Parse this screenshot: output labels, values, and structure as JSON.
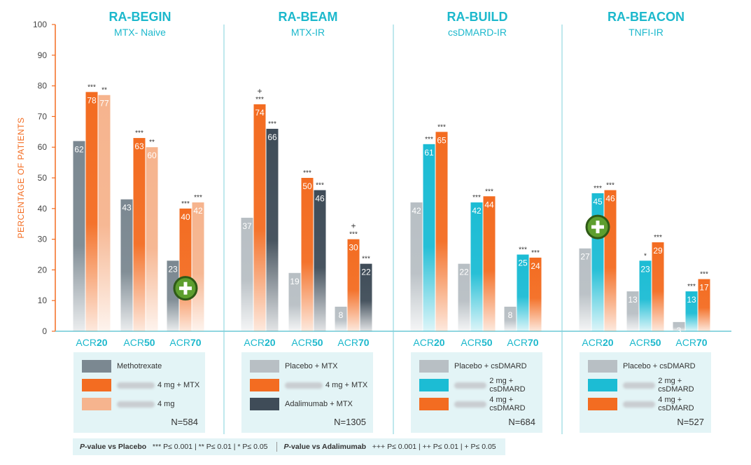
{
  "chart_data": {
    "type": "bar",
    "ylabel": "PERCENTAGE OF PATIENTS",
    "ylim": [
      0,
      100
    ],
    "yticks": [
      0,
      10,
      20,
      30,
      40,
      50,
      60,
      70,
      80,
      90,
      100
    ],
    "panels": [
      {
        "title": "RA-BEGIN",
        "subtitle": "MTX- Naive",
        "groups": [
          {
            "prefix": "ACR",
            "number": "20",
            "values": [
              62,
              78,
              77
            ],
            "marks": [
              "",
              "***",
              "**"
            ]
          },
          {
            "prefix": "ACR",
            "number": "50",
            "values": [
              43,
              63,
              60
            ],
            "marks": [
              "",
              "***",
              "**"
            ]
          },
          {
            "prefix": "ACR",
            "number": "70",
            "values": [
              23,
              40,
              42
            ],
            "marks": [
              "",
              "***",
              "***"
            ]
          }
        ],
        "series_colors": [
          "#7b8891",
          "#f36c21",
          "#f6b48e"
        ],
        "legend": [
          {
            "label": "Methotrexate",
            "blur": false
          },
          {
            "label": "4 mg + MTX",
            "blur": true
          },
          {
            "label": "4 mg",
            "blur": true
          }
        ],
        "n": "N=584",
        "plus_badge": {
          "group": 2,
          "value": 14
        }
      },
      {
        "title": "RA-BEAM",
        "subtitle": "MTX-IR",
        "groups": [
          {
            "prefix": "ACR",
            "number": "20",
            "values": [
              37,
              74,
              66
            ],
            "marks": [
              "",
              "+\n***",
              "***"
            ]
          },
          {
            "prefix": "ACR",
            "number": "50",
            "values": [
              19,
              50,
              46
            ],
            "marks": [
              "",
              "***",
              "***"
            ]
          },
          {
            "prefix": "ACR",
            "number": "70",
            "values": [
              8,
              30,
              22
            ],
            "marks": [
              "",
              "+\n***",
              "***"
            ]
          }
        ],
        "series_colors": [
          "#b8bfc4",
          "#f36c21",
          "#3f4c58"
        ],
        "legend": [
          {
            "label": "Placebo + MTX",
            "blur": false
          },
          {
            "label": "4 mg + MTX",
            "blur": true
          },
          {
            "label": "Adalimumab + MTX",
            "blur": false
          }
        ],
        "n": "N=1305"
      },
      {
        "title": "RA-BUILD",
        "subtitle": "csDMARD-IR",
        "groups": [
          {
            "prefix": "ACR",
            "number": "20",
            "values": [
              42,
              61,
              65
            ],
            "marks": [
              "",
              "***",
              "***"
            ]
          },
          {
            "prefix": "ACR",
            "number": "50",
            "values": [
              22,
              42,
              44
            ],
            "marks": [
              "",
              "***",
              "***"
            ]
          },
          {
            "prefix": "ACR",
            "number": "70",
            "values": [
              8,
              25,
              24
            ],
            "marks": [
              "",
              "***",
              "***"
            ]
          }
        ],
        "series_colors": [
          "#b8bfc4",
          "#1cbcd4",
          "#f36c21"
        ],
        "legend": [
          {
            "label": "Placebo + csDMARD",
            "blur": false
          },
          {
            "label": "2 mg + csDMARD",
            "blur": true
          },
          {
            "label": "4 mg + csDMARD",
            "blur": true
          }
        ],
        "n": "N=684"
      },
      {
        "title": "RA-BEACON",
        "subtitle": "TNFI-IR",
        "groups": [
          {
            "prefix": "ACR",
            "number": "20",
            "values": [
              27,
              45,
              46
            ],
            "marks": [
              "",
              "***",
              "***"
            ]
          },
          {
            "prefix": "ACR",
            "number": "50",
            "values": [
              13,
              23,
              29
            ],
            "marks": [
              "",
              "*",
              "***"
            ]
          },
          {
            "prefix": "ACR",
            "number": "70",
            "values": [
              3,
              13,
              17
            ],
            "marks": [
              "",
              "***",
              "***"
            ]
          }
        ],
        "series_colors": [
          "#b8bfc4",
          "#1cbcd4",
          "#f36c21"
        ],
        "legend": [
          {
            "label": "Placebo + csDMARD",
            "blur": false
          },
          {
            "label": "2 mg + csDMARD",
            "blur": true
          },
          {
            "label": "4 mg + csDMARD",
            "blur": true
          }
        ],
        "n": "N=527",
        "plus_badge": {
          "group": 0,
          "value": 34
        }
      }
    ]
  },
  "footnote": {
    "placebo_label_italic": "P",
    "placebo_label_rest": "-value vs Placebo",
    "placebo_values": "*** P≤ 0.001 | ** P≤ 0.01 | * P≤ 0.05",
    "adalimumab_label_italic": "P",
    "adalimumab_label_rest": "-value vs Adalimumab",
    "adalimumab_values": "+++ P≤ 0.001 | ++ P≤ 0.01 | + P≤ 0.05"
  },
  "colors": {
    "accent_teal": "#1cb8cc",
    "axis_orange": "#f36c21",
    "badge_green": "#5d9e2e"
  }
}
